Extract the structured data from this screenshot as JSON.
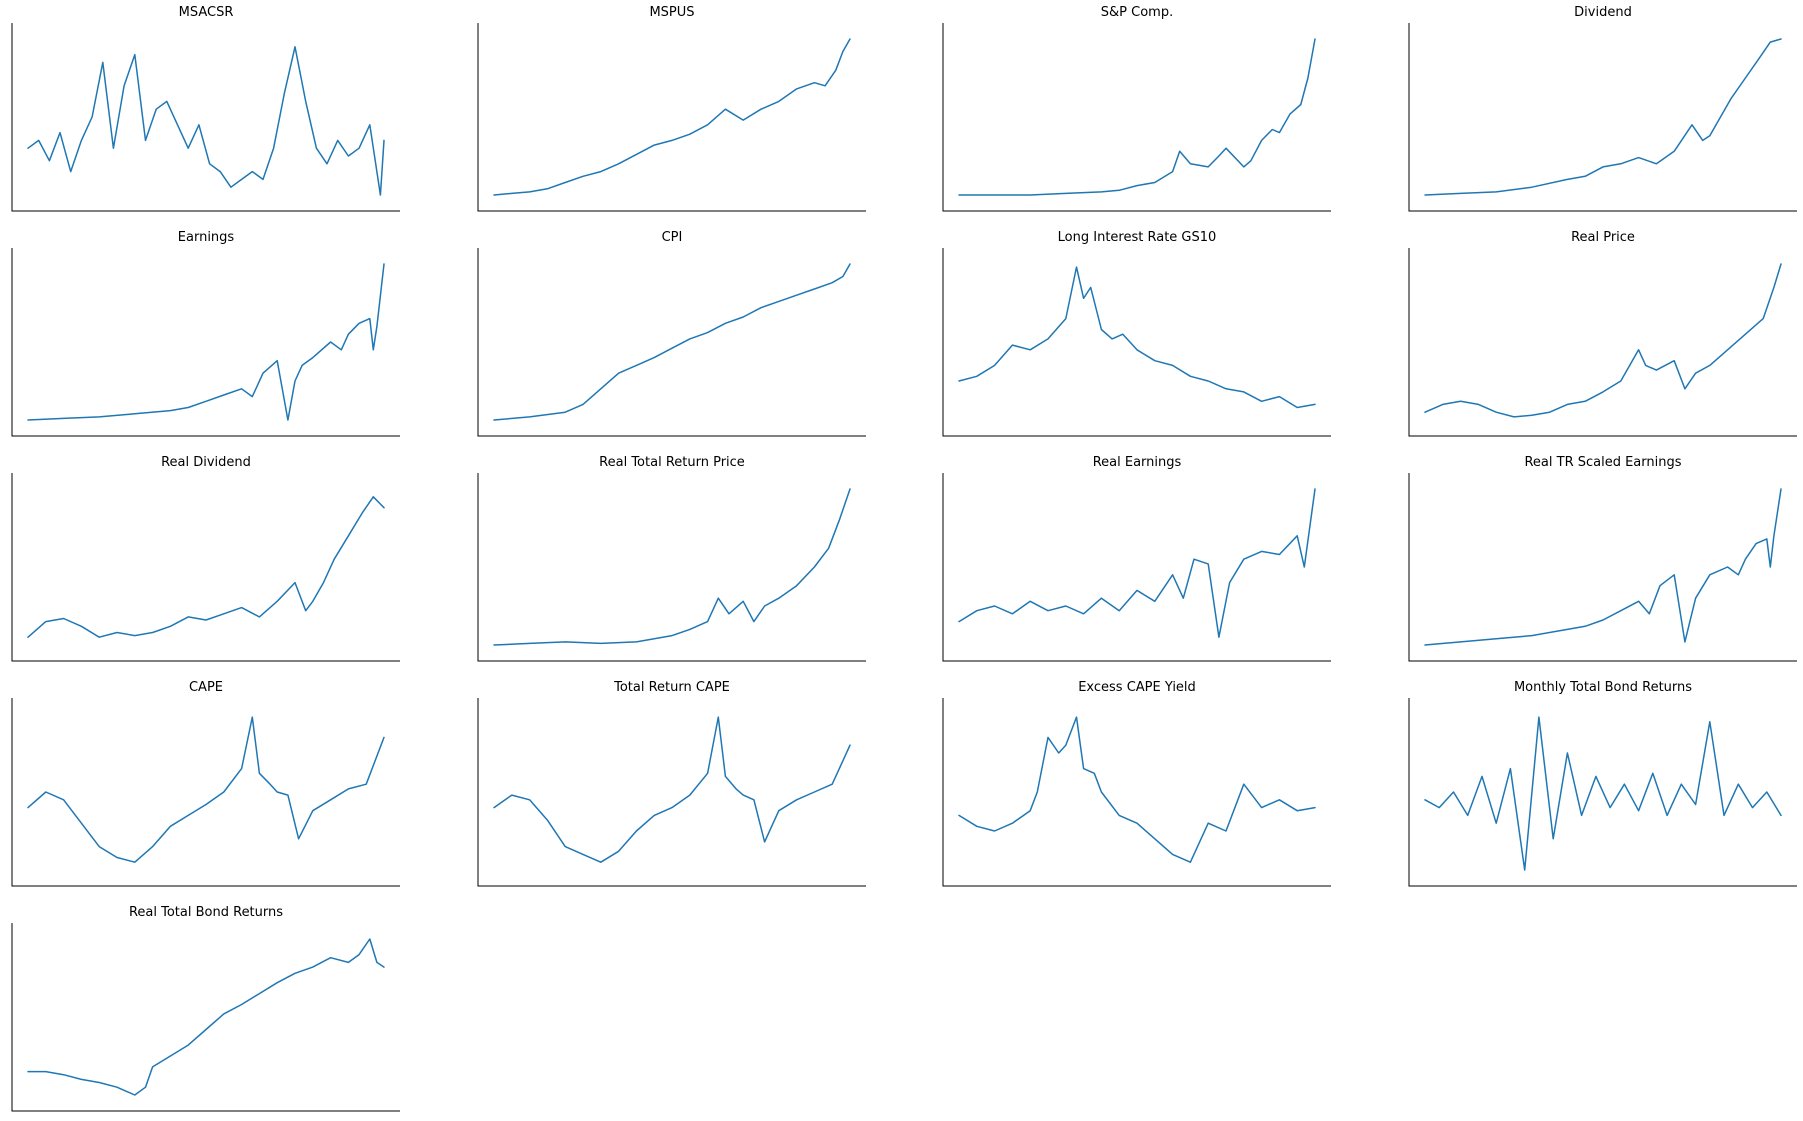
{
  "figure": {
    "title": "",
    "line_color": "#1f77b4",
    "axes_color": "#000000",
    "background": "#ffffff"
  },
  "chart_data": [
    {
      "type": "line",
      "title": "MSACSR",
      "xlabel": "",
      "ylabel": "",
      "grid": false,
      "x_ticks_visible": false,
      "y_ticks_visible": false,
      "x": [
        0,
        0.03,
        0.06,
        0.09,
        0.12,
        0.15,
        0.18,
        0.21,
        0.24,
        0.27,
        0.3,
        0.33,
        0.36,
        0.39,
        0.42,
        0.45,
        0.48,
        0.51,
        0.54,
        0.57,
        0.6,
        0.63,
        0.66,
        0.69,
        0.72,
        0.75,
        0.78,
        0.81,
        0.84,
        0.87,
        0.9,
        0.93,
        0.96,
        0.99,
        1.0
      ],
      "values": [
        0.3,
        0.35,
        0.22,
        0.4,
        0.15,
        0.35,
        0.5,
        0.85,
        0.3,
        0.7,
        0.9,
        0.35,
        0.55,
        0.6,
        0.45,
        0.3,
        0.45,
        0.2,
        0.15,
        0.05,
        0.1,
        0.15,
        0.1,
        0.3,
        0.65,
        0.95,
        0.6,
        0.3,
        0.2,
        0.35,
        0.25,
        0.3,
        0.45,
        0.0,
        0.35
      ],
      "ylim": [
        0,
        1
      ]
    },
    {
      "type": "line",
      "title": "MSPUS",
      "xlabel": "",
      "ylabel": "",
      "grid": false,
      "x_ticks_visible": false,
      "y_ticks_visible": false,
      "x": [
        0,
        0.05,
        0.1,
        0.15,
        0.2,
        0.25,
        0.3,
        0.35,
        0.4,
        0.45,
        0.5,
        0.55,
        0.6,
        0.65,
        0.7,
        0.75,
        0.8,
        0.85,
        0.9,
        0.93,
        0.96,
        0.98,
        1.0
      ],
      "values": [
        0.0,
        0.01,
        0.02,
        0.04,
        0.08,
        0.12,
        0.15,
        0.2,
        0.26,
        0.32,
        0.35,
        0.39,
        0.45,
        0.55,
        0.48,
        0.55,
        0.6,
        0.68,
        0.72,
        0.7,
        0.8,
        0.92,
        1.0
      ],
      "ylim": [
        0,
        1
      ]
    },
    {
      "type": "line",
      "title": "S&P Comp.",
      "xlabel": "",
      "ylabel": "",
      "grid": false,
      "x_ticks_visible": false,
      "y_ticks_visible": false,
      "x": [
        0,
        0.1,
        0.2,
        0.3,
        0.4,
        0.45,
        0.5,
        0.55,
        0.6,
        0.62,
        0.65,
        0.7,
        0.73,
        0.75,
        0.8,
        0.82,
        0.85,
        0.88,
        0.9,
        0.93,
        0.96,
        0.98,
        1.0
      ],
      "values": [
        0.0,
        0.0,
        0.0,
        0.01,
        0.02,
        0.03,
        0.06,
        0.08,
        0.15,
        0.28,
        0.2,
        0.18,
        0.25,
        0.3,
        0.18,
        0.22,
        0.35,
        0.42,
        0.4,
        0.52,
        0.58,
        0.75,
        1.0
      ],
      "ylim": [
        0,
        1
      ]
    },
    {
      "type": "line",
      "title": "Dividend",
      "xlabel": "",
      "ylabel": "",
      "grid": false,
      "x_ticks_visible": false,
      "y_ticks_visible": false,
      "x": [
        0,
        0.1,
        0.2,
        0.3,
        0.4,
        0.45,
        0.5,
        0.55,
        0.6,
        0.65,
        0.7,
        0.75,
        0.78,
        0.8,
        0.83,
        0.86,
        0.9,
        0.94,
        0.97,
        1.0
      ],
      "values": [
        0.0,
        0.01,
        0.02,
        0.05,
        0.1,
        0.12,
        0.18,
        0.2,
        0.24,
        0.2,
        0.28,
        0.45,
        0.35,
        0.38,
        0.5,
        0.62,
        0.75,
        0.88,
        0.98,
        1.0
      ],
      "ylim": [
        0,
        1
      ]
    },
    {
      "type": "line",
      "title": "Earnings",
      "xlabel": "",
      "ylabel": "",
      "grid": false,
      "x_ticks_visible": false,
      "y_ticks_visible": false,
      "x": [
        0,
        0.1,
        0.2,
        0.3,
        0.4,
        0.45,
        0.5,
        0.55,
        0.6,
        0.63,
        0.66,
        0.7,
        0.73,
        0.75,
        0.77,
        0.8,
        0.85,
        0.88,
        0.9,
        0.93,
        0.96,
        0.97,
        0.98,
        1.0
      ],
      "values": [
        0.0,
        0.01,
        0.02,
        0.04,
        0.06,
        0.08,
        0.12,
        0.16,
        0.2,
        0.15,
        0.3,
        0.38,
        0.0,
        0.25,
        0.35,
        0.4,
        0.5,
        0.45,
        0.55,
        0.62,
        0.65,
        0.45,
        0.6,
        1.0
      ],
      "ylim": [
        0,
        1
      ]
    },
    {
      "type": "line",
      "title": "CPI",
      "xlabel": "",
      "ylabel": "",
      "grid": false,
      "x_ticks_visible": false,
      "y_ticks_visible": false,
      "x": [
        0,
        0.1,
        0.2,
        0.25,
        0.3,
        0.35,
        0.4,
        0.45,
        0.5,
        0.55,
        0.6,
        0.65,
        0.7,
        0.75,
        0.8,
        0.85,
        0.9,
        0.95,
        0.98,
        1.0
      ],
      "values": [
        0.0,
        0.02,
        0.05,
        0.1,
        0.2,
        0.3,
        0.35,
        0.4,
        0.46,
        0.52,
        0.56,
        0.62,
        0.66,
        0.72,
        0.76,
        0.8,
        0.84,
        0.88,
        0.92,
        1.0
      ],
      "ylim": [
        0,
        1
      ]
    },
    {
      "type": "line",
      "title": "Long Interest Rate GS10",
      "xlabel": "",
      "ylabel": "",
      "grid": false,
      "x_ticks_visible": false,
      "y_ticks_visible": false,
      "x": [
        0,
        0.05,
        0.1,
        0.15,
        0.2,
        0.25,
        0.3,
        0.33,
        0.35,
        0.37,
        0.4,
        0.43,
        0.46,
        0.5,
        0.55,
        0.6,
        0.65,
        0.7,
        0.75,
        0.8,
        0.85,
        0.9,
        0.95,
        1.0
      ],
      "values": [
        0.25,
        0.28,
        0.35,
        0.48,
        0.45,
        0.52,
        0.65,
        0.98,
        0.78,
        0.85,
        0.58,
        0.52,
        0.55,
        0.45,
        0.38,
        0.35,
        0.28,
        0.25,
        0.2,
        0.18,
        0.12,
        0.15,
        0.08,
        0.1
      ],
      "ylim": [
        0,
        1
      ]
    },
    {
      "type": "line",
      "title": "Real Price",
      "xlabel": "",
      "ylabel": "",
      "grid": false,
      "x_ticks_visible": false,
      "y_ticks_visible": false,
      "x": [
        0,
        0.05,
        0.1,
        0.15,
        0.2,
        0.25,
        0.3,
        0.35,
        0.4,
        0.45,
        0.5,
        0.55,
        0.6,
        0.62,
        0.65,
        0.7,
        0.73,
        0.76,
        0.8,
        0.85,
        0.9,
        0.95,
        0.98,
        1.0
      ],
      "values": [
        0.05,
        0.1,
        0.12,
        0.1,
        0.05,
        0.02,
        0.03,
        0.05,
        0.1,
        0.12,
        0.18,
        0.25,
        0.45,
        0.35,
        0.32,
        0.38,
        0.2,
        0.3,
        0.35,
        0.45,
        0.55,
        0.65,
        0.85,
        1.0
      ],
      "ylim": [
        0,
        1
      ]
    },
    {
      "type": "line",
      "title": "Real Dividend",
      "xlabel": "",
      "ylabel": "",
      "grid": false,
      "x_ticks_visible": false,
      "y_ticks_visible": false,
      "x": [
        0,
        0.05,
        0.1,
        0.15,
        0.2,
        0.25,
        0.3,
        0.35,
        0.4,
        0.45,
        0.5,
        0.55,
        0.6,
        0.65,
        0.7,
        0.75,
        0.78,
        0.8,
        0.83,
        0.86,
        0.9,
        0.94,
        0.97,
        1.0
      ],
      "values": [
        0.05,
        0.15,
        0.17,
        0.12,
        0.05,
        0.08,
        0.06,
        0.08,
        0.12,
        0.18,
        0.16,
        0.2,
        0.24,
        0.18,
        0.28,
        0.4,
        0.22,
        0.28,
        0.4,
        0.55,
        0.7,
        0.85,
        0.95,
        0.88
      ],
      "ylim": [
        0,
        1
      ]
    },
    {
      "type": "line",
      "title": "Real Total Return Price",
      "xlabel": "",
      "ylabel": "",
      "grid": false,
      "x_ticks_visible": false,
      "y_ticks_visible": false,
      "x": [
        0,
        0.1,
        0.2,
        0.3,
        0.4,
        0.45,
        0.5,
        0.55,
        0.6,
        0.63,
        0.66,
        0.7,
        0.73,
        0.76,
        0.8,
        0.85,
        0.9,
        0.94,
        0.97,
        1.0
      ],
      "values": [
        0.0,
        0.01,
        0.02,
        0.01,
        0.02,
        0.04,
        0.06,
        0.1,
        0.15,
        0.3,
        0.2,
        0.28,
        0.15,
        0.25,
        0.3,
        0.38,
        0.5,
        0.62,
        0.8,
        1.0
      ],
      "ylim": [
        0,
        1
      ]
    },
    {
      "type": "line",
      "title": "Real Earnings",
      "xlabel": "",
      "ylabel": "",
      "grid": false,
      "x_ticks_visible": false,
      "y_ticks_visible": false,
      "x": [
        0,
        0.05,
        0.1,
        0.15,
        0.2,
        0.25,
        0.3,
        0.35,
        0.4,
        0.45,
        0.5,
        0.55,
        0.6,
        0.63,
        0.66,
        0.7,
        0.73,
        0.76,
        0.8,
        0.85,
        0.9,
        0.95,
        0.97,
        1.0
      ],
      "values": [
        0.15,
        0.22,
        0.25,
        0.2,
        0.28,
        0.22,
        0.25,
        0.2,
        0.3,
        0.22,
        0.35,
        0.28,
        0.45,
        0.3,
        0.55,
        0.52,
        0.05,
        0.4,
        0.55,
        0.6,
        0.58,
        0.7,
        0.5,
        1.0
      ],
      "ylim": [
        0,
        1
      ]
    },
    {
      "type": "line",
      "title": "Real TR Scaled Earnings",
      "xlabel": "",
      "ylabel": "",
      "grid": false,
      "x_ticks_visible": false,
      "y_ticks_visible": false,
      "x": [
        0,
        0.1,
        0.2,
        0.3,
        0.4,
        0.45,
        0.5,
        0.55,
        0.6,
        0.63,
        0.66,
        0.7,
        0.73,
        0.76,
        0.8,
        0.85,
        0.88,
        0.9,
        0.93,
        0.96,
        0.97,
        0.98,
        1.0
      ],
      "values": [
        0.0,
        0.02,
        0.04,
        0.06,
        0.1,
        0.12,
        0.16,
        0.22,
        0.28,
        0.2,
        0.38,
        0.45,
        0.02,
        0.3,
        0.45,
        0.5,
        0.45,
        0.55,
        0.65,
        0.68,
        0.5,
        0.7,
        1.0
      ],
      "ylim": [
        0,
        1
      ]
    },
    {
      "type": "line",
      "title": "CAPE",
      "xlabel": "",
      "ylabel": "",
      "grid": false,
      "x_ticks_visible": false,
      "y_ticks_visible": false,
      "x": [
        0,
        0.05,
        0.1,
        0.15,
        0.2,
        0.25,
        0.3,
        0.35,
        0.4,
        0.45,
        0.5,
        0.55,
        0.6,
        0.63,
        0.65,
        0.68,
        0.7,
        0.73,
        0.76,
        0.8,
        0.85,
        0.9,
        0.95,
        1.0
      ],
      "values": [
        0.4,
        0.5,
        0.45,
        0.3,
        0.15,
        0.08,
        0.05,
        0.15,
        0.28,
        0.35,
        0.42,
        0.5,
        0.65,
        0.98,
        0.62,
        0.55,
        0.5,
        0.48,
        0.2,
        0.38,
        0.45,
        0.52,
        0.55,
        0.85
      ],
      "ylim": [
        0,
        1
      ]
    },
    {
      "type": "line",
      "title": "Total Return CAPE",
      "xlabel": "",
      "ylabel": "",
      "grid": false,
      "x_ticks_visible": false,
      "y_ticks_visible": false,
      "x": [
        0,
        0.05,
        0.1,
        0.15,
        0.2,
        0.25,
        0.3,
        0.35,
        0.4,
        0.45,
        0.5,
        0.55,
        0.6,
        0.63,
        0.65,
        0.68,
        0.7,
        0.73,
        0.76,
        0.8,
        0.85,
        0.9,
        0.95,
        1.0
      ],
      "values": [
        0.4,
        0.48,
        0.45,
        0.32,
        0.15,
        0.1,
        0.05,
        0.12,
        0.25,
        0.35,
        0.4,
        0.48,
        0.62,
        0.98,
        0.6,
        0.52,
        0.48,
        0.45,
        0.18,
        0.38,
        0.45,
        0.5,
        0.55,
        0.8
      ],
      "ylim": [
        0,
        1
      ]
    },
    {
      "type": "line",
      "title": "Excess CAPE Yield",
      "xlabel": "",
      "ylabel": "",
      "grid": false,
      "x_ticks_visible": false,
      "y_ticks_visible": false,
      "x": [
        0,
        0.05,
        0.1,
        0.15,
        0.2,
        0.22,
        0.25,
        0.28,
        0.3,
        0.33,
        0.35,
        0.38,
        0.4,
        0.45,
        0.5,
        0.55,
        0.6,
        0.65,
        0.7,
        0.75,
        0.8,
        0.85,
        0.9,
        0.95,
        1.0
      ],
      "values": [
        0.35,
        0.28,
        0.25,
        0.3,
        0.38,
        0.5,
        0.85,
        0.75,
        0.8,
        0.98,
        0.65,
        0.62,
        0.5,
        0.35,
        0.3,
        0.2,
        0.1,
        0.05,
        0.3,
        0.25,
        0.55,
        0.4,
        0.45,
        0.38,
        0.4
      ],
      "ylim": [
        0,
        1
      ]
    },
    {
      "type": "line",
      "title": "Monthly Total Bond Returns",
      "xlabel": "",
      "ylabel": "",
      "grid": false,
      "x_ticks_visible": false,
      "y_ticks_visible": false,
      "x": [
        0,
        0.04,
        0.08,
        0.12,
        0.16,
        0.2,
        0.24,
        0.28,
        0.32,
        0.36,
        0.4,
        0.44,
        0.48,
        0.52,
        0.56,
        0.6,
        0.64,
        0.68,
        0.72,
        0.76,
        0.8,
        0.84,
        0.88,
        0.92,
        0.96,
        1.0
      ],
      "values": [
        0.45,
        0.4,
        0.5,
        0.35,
        0.6,
        0.3,
        0.65,
        0.0,
        0.98,
        0.2,
        0.75,
        0.35,
        0.6,
        0.4,
        0.55,
        0.38,
        0.62,
        0.35,
        0.55,
        0.42,
        0.95,
        0.35,
        0.55,
        0.4,
        0.5,
        0.35
      ],
      "ylim": [
        0,
        1
      ]
    },
    {
      "type": "line",
      "title": "Real Total Bond Returns",
      "xlabel": "",
      "ylabel": "",
      "grid": false,
      "x_ticks_visible": false,
      "y_ticks_visible": false,
      "x": [
        0,
        0.05,
        0.1,
        0.15,
        0.2,
        0.25,
        0.3,
        0.33,
        0.35,
        0.4,
        0.45,
        0.5,
        0.55,
        0.6,
        0.65,
        0.7,
        0.75,
        0.8,
        0.85,
        0.9,
        0.93,
        0.96,
        0.98,
        1.0
      ],
      "values": [
        0.15,
        0.15,
        0.13,
        0.1,
        0.08,
        0.05,
        0.0,
        0.05,
        0.18,
        0.25,
        0.32,
        0.42,
        0.52,
        0.58,
        0.65,
        0.72,
        0.78,
        0.82,
        0.88,
        0.85,
        0.9,
        1.0,
        0.85,
        0.82
      ],
      "ylim": [
        0,
        1
      ]
    }
  ]
}
